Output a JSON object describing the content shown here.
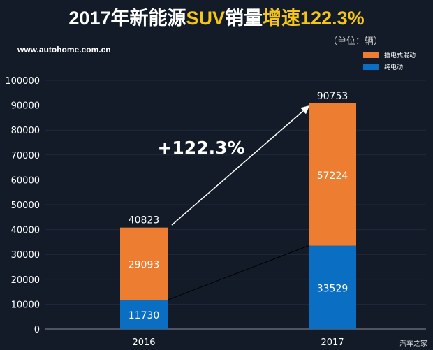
{
  "title": {
    "part1": "2017年新能源",
    "part2": "SUV",
    "part3": "销量",
    "part4": "增速122.3%"
  },
  "unit": "（单位：辆）",
  "site": "www.autohome.com.cn",
  "watermark": "汽车之家",
  "colors": {
    "phev": "#ed7d31",
    "ev": "#0a6fc2",
    "title_highlight": "#f5c518"
  },
  "chart_data": {
    "type": "bar",
    "stacked": true,
    "categories": [
      "2016",
      "2017"
    ],
    "series": [
      {
        "name": "纯电动",
        "values": [
          11730,
          33529
        ]
      },
      {
        "name": "插电式混动",
        "values": [
          29093,
          57224
        ]
      }
    ],
    "totals": [
      40823,
      90753
    ],
    "ylim": [
      0,
      100000
    ],
    "yticks": [
      "0",
      "10000",
      "20000",
      "30000",
      "40000",
      "50000",
      "60000",
      "70000",
      "80000",
      "90000",
      "100000"
    ],
    "annotation": "+122.3%",
    "legend": "top-right"
  }
}
